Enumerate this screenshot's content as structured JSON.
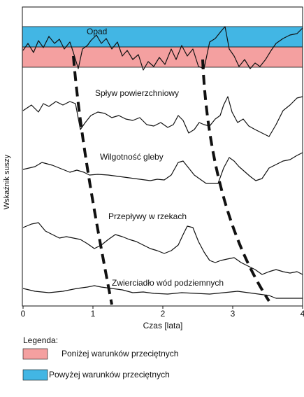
{
  "chart_data": {
    "type": "line",
    "annotations": [
      "Opad",
      "Spływ powierzchniowy",
      "Wilgotność gleby",
      "Przepływy w rzekach",
      "Zwierciadło wód podziemnych"
    ],
    "x_label": "Czas [lata]",
    "y_label": "Wskaźnik suszy",
    "xlim": [
      0,
      4
    ],
    "xticks": [
      0,
      1,
      2,
      3,
      4
    ],
    "legend_title": "Legenda:",
    "bands": [
      {
        "name": "Poniżej warunków przeciętnych",
        "color": "#f4a0a0"
      },
      {
        "name": "Powyżej warunków przeciętnych",
        "color": "#42b6e4"
      }
    ]
  }
}
